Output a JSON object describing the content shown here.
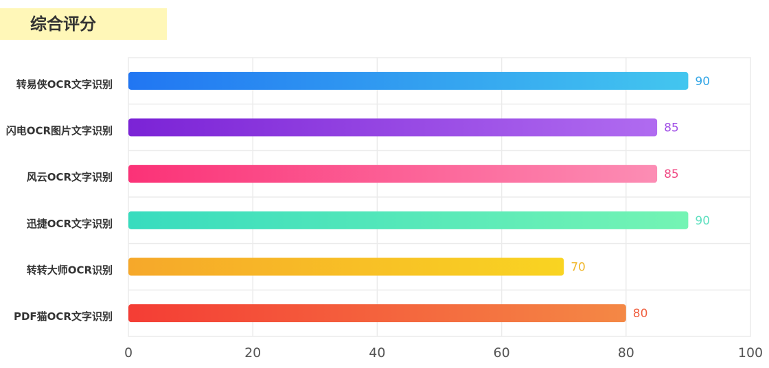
{
  "title": "综合评分",
  "chart_data": {
    "type": "bar",
    "orientation": "horizontal",
    "title": "",
    "xlabel": "",
    "ylabel": "",
    "xlim": [
      0,
      100
    ],
    "x_ticks": [
      "0",
      "20",
      "40",
      "60",
      "80",
      "100"
    ],
    "grid": true,
    "categories": [
      "转易侠OCR文字识别",
      "闪电OCR图片文字识别",
      "风云OCR文字识别",
      "迅捷OCR文字识别",
      "转转大师OCR识别",
      "PDF猫OCR文字识别"
    ],
    "values": [
      90,
      85,
      85,
      90,
      70,
      80
    ],
    "value_labels": [
      "90",
      "85",
      "85",
      "90",
      "70",
      "80"
    ],
    "gradients": [
      [
        "#2176f2",
        "#43c6ef"
      ],
      [
        "#7b23d6",
        "#b06bf0"
      ],
      [
        "#fb3277",
        "#fc8db4"
      ],
      [
        "#38dcbe",
        "#74f4b4"
      ],
      [
        "#f6a82a",
        "#f9d422"
      ],
      [
        "#f43d35",
        "#f48845"
      ]
    ],
    "label_colors": [
      "#33a6e6",
      "#a04ee6",
      "#f04a84",
      "#5fe0c0",
      "#f0b72c",
      "#f06040"
    ]
  }
}
